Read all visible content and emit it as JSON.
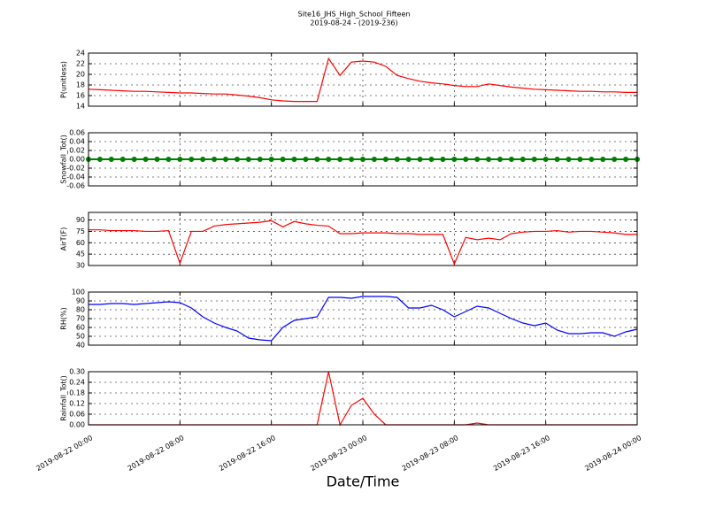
{
  "title": "Site16_JHS_High_School_Fifteen",
  "subtitle": "2019-08-24 - (2019-236)",
  "xlabel": "Date/Time",
  "chart_data": [
    {
      "type": "line",
      "ylabel": "P(unitless)",
      "color": "#ff0000",
      "x": [
        "2019-08-22 00:00",
        "2019-08-22 01:00",
        "2019-08-22 02:00",
        "2019-08-22 03:00",
        "2019-08-22 04:00",
        "2019-08-22 05:00",
        "2019-08-22 06:00",
        "2019-08-22 07:00",
        "2019-08-22 08:00",
        "2019-08-22 09:00",
        "2019-08-22 10:00",
        "2019-08-22 11:00",
        "2019-08-22 12:00",
        "2019-08-22 13:00",
        "2019-08-22 14:00",
        "2019-08-22 15:00",
        "2019-08-22 16:00",
        "2019-08-22 17:00",
        "2019-08-22 18:00",
        "2019-08-22 19:00",
        "2019-08-22 20:00",
        "2019-08-22 21:00",
        "2019-08-22 22:00",
        "2019-08-22 23:00",
        "2019-08-23 00:00",
        "2019-08-23 01:00",
        "2019-08-23 02:00",
        "2019-08-23 03:00",
        "2019-08-23 04:00",
        "2019-08-23 05:00",
        "2019-08-23 06:00",
        "2019-08-23 07:00",
        "2019-08-23 08:00",
        "2019-08-23 09:00",
        "2019-08-23 10:00",
        "2019-08-23 11:00",
        "2019-08-23 12:00",
        "2019-08-23 13:00",
        "2019-08-23 14:00",
        "2019-08-23 15:00",
        "2019-08-23 16:00",
        "2019-08-23 17:00",
        "2019-08-23 18:00",
        "2019-08-23 19:00",
        "2019-08-23 20:00",
        "2019-08-23 21:00",
        "2019-08-23 22:00",
        "2019-08-23 23:00",
        "2019-08-24 00:00"
      ],
      "values": [
        17.2,
        17.1,
        17.0,
        16.9,
        16.8,
        16.8,
        16.7,
        16.6,
        16.5,
        16.5,
        16.4,
        16.3,
        16.3,
        16.1,
        15.9,
        15.6,
        15.2,
        15.0,
        14.9,
        14.9,
        14.9,
        23.0,
        19.8,
        22.3,
        22.5,
        22.3,
        21.5,
        19.8,
        19.2,
        18.7,
        18.4,
        18.2,
        17.9,
        17.7,
        17.7,
        18.2,
        17.9,
        17.6,
        17.4,
        17.2,
        17.1,
        17.0,
        16.9,
        16.8,
        16.8,
        16.7,
        16.7,
        16.6,
        16.6
      ],
      "xlim": [
        "2019-08-22 00:00",
        "2019-08-24 00:00"
      ],
      "xticks": [
        "2019-08-22 00:00",
        "2019-08-22 08:00",
        "2019-08-22 16:00",
        "2019-08-23 00:00",
        "2019-08-23 08:00",
        "2019-08-23 16:00",
        "2019-08-24 00:00"
      ],
      "ylim": [
        14,
        24
      ],
      "yticks": [
        14,
        16,
        18,
        20,
        22,
        24
      ],
      "grid": true
    },
    {
      "type": "line",
      "ylabel": "Snowfall_Tot()",
      "color": "#008000",
      "marker": true,
      "x": [
        "2019-08-22 00:00",
        "2019-08-22 01:00",
        "2019-08-22 02:00",
        "2019-08-22 03:00",
        "2019-08-22 04:00",
        "2019-08-22 05:00",
        "2019-08-22 06:00",
        "2019-08-22 07:00",
        "2019-08-22 08:00",
        "2019-08-22 09:00",
        "2019-08-22 10:00",
        "2019-08-22 11:00",
        "2019-08-22 12:00",
        "2019-08-22 13:00",
        "2019-08-22 14:00",
        "2019-08-22 15:00",
        "2019-08-22 16:00",
        "2019-08-22 17:00",
        "2019-08-22 18:00",
        "2019-08-22 19:00",
        "2019-08-22 20:00",
        "2019-08-22 21:00",
        "2019-08-22 22:00",
        "2019-08-22 23:00",
        "2019-08-23 00:00",
        "2019-08-23 01:00",
        "2019-08-23 02:00",
        "2019-08-23 03:00",
        "2019-08-23 04:00",
        "2019-08-23 05:00",
        "2019-08-23 06:00",
        "2019-08-23 07:00",
        "2019-08-23 08:00",
        "2019-08-23 09:00",
        "2019-08-23 10:00",
        "2019-08-23 11:00",
        "2019-08-23 12:00",
        "2019-08-23 13:00",
        "2019-08-23 14:00",
        "2019-08-23 15:00",
        "2019-08-23 16:00",
        "2019-08-23 17:00",
        "2019-08-23 18:00",
        "2019-08-23 19:00",
        "2019-08-23 20:00",
        "2019-08-23 21:00",
        "2019-08-23 22:00",
        "2019-08-23 23:00",
        "2019-08-24 00:00"
      ],
      "values": [
        0,
        0,
        0,
        0,
        0,
        0,
        0,
        0,
        0,
        0,
        0,
        0,
        0,
        0,
        0,
        0,
        0,
        0,
        0,
        0,
        0,
        0,
        0,
        0,
        0,
        0,
        0,
        0,
        0,
        0,
        0,
        0,
        0,
        0,
        0,
        0,
        0,
        0,
        0,
        0,
        0,
        0,
        0,
        0,
        0,
        0,
        0,
        0,
        0
      ],
      "xlim": [
        "2019-08-22 00:00",
        "2019-08-24 00:00"
      ],
      "xticks": [
        "2019-08-22 00:00",
        "2019-08-22 08:00",
        "2019-08-22 16:00",
        "2019-08-23 00:00",
        "2019-08-23 08:00",
        "2019-08-23 16:00",
        "2019-08-24 00:00"
      ],
      "ylim": [
        -0.06,
        0.06
      ],
      "yticks": [
        -0.06,
        -0.04,
        -0.02,
        {
          "value": 0,
          "label": "0.00"
        },
        0.02,
        0.04,
        0.06
      ],
      "grid": true
    },
    {
      "type": "line",
      "ylabel": "AirT(F)",
      "color": "#ff0000",
      "x": [
        "2019-08-22 00:00",
        "2019-08-22 01:00",
        "2019-08-22 02:00",
        "2019-08-22 03:00",
        "2019-08-22 04:00",
        "2019-08-22 05:00",
        "2019-08-22 06:00",
        "2019-08-22 07:00",
        "2019-08-22 08:00",
        "2019-08-22 09:00",
        "2019-08-22 10:00",
        "2019-08-22 11:00",
        "2019-08-22 12:00",
        "2019-08-22 13:00",
        "2019-08-22 14:00",
        "2019-08-22 15:00",
        "2019-08-22 16:00",
        "2019-08-22 17:00",
        "2019-08-22 18:00",
        "2019-08-22 19:00",
        "2019-08-22 20:00",
        "2019-08-22 21:00",
        "2019-08-22 22:00",
        "2019-08-22 23:00",
        "2019-08-23 00:00",
        "2019-08-23 01:00",
        "2019-08-23 02:00",
        "2019-08-23 03:00",
        "2019-08-23 04:00",
        "2019-08-23 05:00",
        "2019-08-23 06:00",
        "2019-08-23 07:00",
        "2019-08-23 08:00",
        "2019-08-23 09:00",
        "2019-08-23 10:00",
        "2019-08-23 11:00",
        "2019-08-23 12:00",
        "2019-08-23 13:00",
        "2019-08-23 14:00",
        "2019-08-23 15:00",
        "2019-08-23 16:00",
        "2019-08-23 17:00",
        "2019-08-23 18:00",
        "2019-08-23 19:00",
        "2019-08-23 20:00",
        "2019-08-23 21:00",
        "2019-08-23 22:00",
        "2019-08-23 23:00",
        "2019-08-24 00:00"
      ],
      "values": [
        77,
        77,
        76,
        76,
        76,
        75,
        75,
        76,
        33,
        75,
        75,
        82,
        84,
        85,
        86,
        87,
        89,
        81,
        88,
        85,
        83,
        82,
        72,
        72,
        73,
        73,
        73,
        72,
        72,
        71,
        71,
        71,
        32,
        67,
        64,
        66,
        64,
        72,
        74,
        75,
        75,
        76,
        74,
        75,
        75,
        74,
        73,
        71,
        71
      ],
      "xlim": [
        "2019-08-22 00:00",
        "2019-08-24 00:00"
      ],
      "xticks": [
        "2019-08-22 00:00",
        "2019-08-22 08:00",
        "2019-08-22 16:00",
        "2019-08-23 00:00",
        "2019-08-23 08:00",
        "2019-08-23 16:00",
        "2019-08-24 00:00"
      ],
      "ylim": [
        30,
        100
      ],
      "yticks": [
        30,
        45,
        60,
        75,
        90
      ],
      "grid": true
    },
    {
      "type": "line",
      "ylabel": "RH(%)",
      "color": "#0000ff",
      "x": [
        "2019-08-22 00:00",
        "2019-08-22 01:00",
        "2019-08-22 02:00",
        "2019-08-22 03:00",
        "2019-08-22 04:00",
        "2019-08-22 05:00",
        "2019-08-22 06:00",
        "2019-08-22 07:00",
        "2019-08-22 08:00",
        "2019-08-22 09:00",
        "2019-08-22 10:00",
        "2019-08-22 11:00",
        "2019-08-22 12:00",
        "2019-08-22 13:00",
        "2019-08-22 14:00",
        "2019-08-22 15:00",
        "2019-08-22 16:00",
        "2019-08-22 17:00",
        "2019-08-22 18:00",
        "2019-08-22 19:00",
        "2019-08-22 20:00",
        "2019-08-22 21:00",
        "2019-08-22 22:00",
        "2019-08-22 23:00",
        "2019-08-23 00:00",
        "2019-08-23 01:00",
        "2019-08-23 02:00",
        "2019-08-23 03:00",
        "2019-08-23 04:00",
        "2019-08-23 05:00",
        "2019-08-23 06:00",
        "2019-08-23 07:00",
        "2019-08-23 08:00",
        "2019-08-23 09:00",
        "2019-08-23 10:00",
        "2019-08-23 11:00",
        "2019-08-23 12:00",
        "2019-08-23 13:00",
        "2019-08-23 14:00",
        "2019-08-23 15:00",
        "2019-08-23 16:00",
        "2019-08-23 17:00",
        "2019-08-23 18:00",
        "2019-08-23 19:00",
        "2019-08-23 20:00",
        "2019-08-23 21:00",
        "2019-08-23 22:00",
        "2019-08-23 23:00",
        "2019-08-24 00:00"
      ],
      "values": [
        86,
        86,
        87,
        87,
        86,
        87,
        88,
        89,
        88,
        82,
        72,
        65,
        60,
        56,
        48,
        46,
        45,
        60,
        68,
        70,
        72,
        94,
        94,
        93,
        95,
        95,
        95,
        94,
        82,
        82,
        85,
        80,
        72,
        78,
        84,
        82,
        76,
        70,
        65,
        62,
        65,
        57,
        53,
        53,
        54,
        54,
        50,
        55,
        58
      ],
      "xlim": [
        "2019-08-22 00:00",
        "2019-08-24 00:00"
      ],
      "xticks": [
        "2019-08-22 00:00",
        "2019-08-22 08:00",
        "2019-08-22 16:00",
        "2019-08-23 00:00",
        "2019-08-23 08:00",
        "2019-08-23 16:00",
        "2019-08-24 00:00"
      ],
      "ylim": [
        40,
        100
      ],
      "yticks": [
        40,
        50,
        60,
        70,
        80,
        90,
        100
      ],
      "grid": true
    },
    {
      "type": "line",
      "ylabel": "Rainfall_Tot()",
      "color": "#ff0000",
      "x": [
        "2019-08-22 00:00",
        "2019-08-22 01:00",
        "2019-08-22 02:00",
        "2019-08-22 03:00",
        "2019-08-22 04:00",
        "2019-08-22 05:00",
        "2019-08-22 06:00",
        "2019-08-22 07:00",
        "2019-08-22 08:00",
        "2019-08-22 09:00",
        "2019-08-22 10:00",
        "2019-08-22 11:00",
        "2019-08-22 12:00",
        "2019-08-22 13:00",
        "2019-08-22 14:00",
        "2019-08-22 15:00",
        "2019-08-22 16:00",
        "2019-08-22 17:00",
        "2019-08-22 18:00",
        "2019-08-22 19:00",
        "2019-08-22 20:00",
        "2019-08-22 21:00",
        "2019-08-22 22:00",
        "2019-08-22 23:00",
        "2019-08-23 00:00",
        "2019-08-23 01:00",
        "2019-08-23 02:00",
        "2019-08-23 03:00",
        "2019-08-23 04:00",
        "2019-08-23 05:00",
        "2019-08-23 06:00",
        "2019-08-23 07:00",
        "2019-08-23 08:00",
        "2019-08-23 09:00",
        "2019-08-23 10:00",
        "2019-08-23 11:00",
        "2019-08-23 12:00",
        "2019-08-23 13:00",
        "2019-08-23 14:00",
        "2019-08-23 15:00",
        "2019-08-23 16:00",
        "2019-08-23 17:00",
        "2019-08-23 18:00",
        "2019-08-23 19:00",
        "2019-08-23 20:00",
        "2019-08-23 21:00",
        "2019-08-23 22:00",
        "2019-08-23 23:00",
        "2019-08-24 00:00"
      ],
      "values": [
        0,
        0,
        0,
        0,
        0,
        0,
        0,
        0,
        0,
        0,
        0,
        0,
        0,
        0,
        0,
        0,
        0,
        0,
        0,
        0,
        0,
        0.3,
        0,
        0.11,
        0.15,
        0.06,
        0,
        0,
        0,
        0,
        0,
        0,
        0,
        0,
        0.01,
        0,
        0,
        0,
        0,
        0,
        0,
        0,
        0,
        0,
        0,
        0,
        0,
        0,
        0
      ],
      "xlim": [
        "2019-08-22 00:00",
        "2019-08-24 00:00"
      ],
      "xticks": [
        "2019-08-22 00:00",
        "2019-08-22 08:00",
        "2019-08-22 16:00",
        "2019-08-23 00:00",
        "2019-08-23 08:00",
        "2019-08-23 16:00",
        "2019-08-24 00:00"
      ],
      "ylim": [
        0,
        0.3
      ],
      "yticks": [
        {
          "value": 0,
          "label": "0.00"
        },
        0.06,
        0.12,
        0.18,
        0.24,
        {
          "value": 0.3,
          "label": "0.30"
        }
      ],
      "grid": true
    }
  ]
}
